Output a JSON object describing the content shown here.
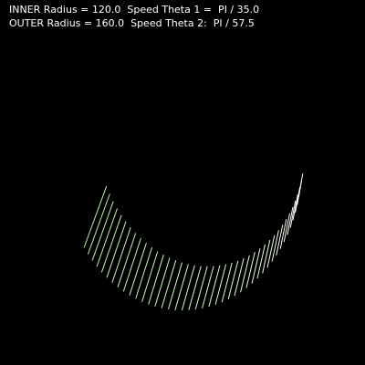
{
  "readout": {
    "inner_line": "INNER Radius = 120.0  Speed Theta 1 =  PI / 35.0",
    "outer_line": "OUTER Radius = 160.0  Speed Theta 2:  PI / 57.5"
  },
  "sketch": {
    "inner_radius": 120.0,
    "outer_radius": 160.0,
    "speed_theta_1": "PI / 35.0",
    "speed_theta_2": "PI / 57.5",
    "line_count": 42,
    "colors": {
      "background": "#000000",
      "text": "#ffffff",
      "line_start": "#b6f5a6",
      "line_end": "#ffffff"
    }
  }
}
